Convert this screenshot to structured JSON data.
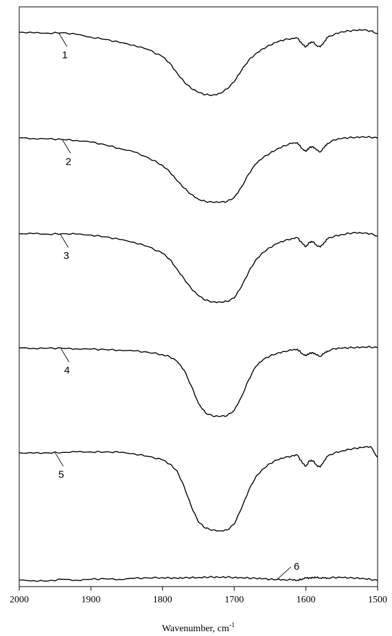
{
  "chart_data": {
    "type": "line",
    "title": "",
    "xlabel": "Wavenumber, cm",
    "xlabel_sup": "-1",
    "ylabel": "",
    "xlim": [
      2000,
      1500
    ],
    "x_ticks": [
      2000,
      1900,
      1800,
      1700,
      1600,
      1500
    ],
    "x_tick_labels": [
      "2000",
      "1900",
      "1800",
      "1700",
      "1600",
      "1500"
    ],
    "y_axis_labels_shown": false,
    "grid": false,
    "x_axis_reversed": true,
    "line_color": "#000000",
    "series": [
      {
        "label": "1",
        "label_x": 1945,
        "x": [
          2000,
          1980,
          1960,
          1940,
          1920,
          1900,
          1880,
          1860,
          1840,
          1820,
          1800,
          1790,
          1780,
          1770,
          1760,
          1750,
          1740,
          1730,
          1720,
          1710,
          1700,
          1690,
          1680,
          1670,
          1660,
          1650,
          1640,
          1630,
          1620,
          1612,
          1605,
          1600,
          1595,
          1590,
          1585,
          1580,
          1575,
          1570,
          1560,
          1550,
          1540,
          1530,
          1520,
          1510,
          1500
        ],
        "y": [
          -0.3,
          -0.45,
          -0.5,
          -0.4,
          -0.8,
          -1.4,
          -1.9,
          -2.6,
          -3.2,
          -4.2,
          -5.8,
          -7.2,
          -9.4,
          -11.4,
          -12.9,
          -13.8,
          -14.3,
          -14.4,
          -14.0,
          -13.0,
          -11.4,
          -8.9,
          -6.6,
          -5.1,
          -4.0,
          -3.2,
          -2.5,
          -2.0,
          -1.7,
          -1.6,
          -3.0,
          -3.6,
          -2.7,
          -2.5,
          -3.3,
          -3.6,
          -2.6,
          -1.5,
          -0.7,
          -0.2,
          0.0,
          0.1,
          0.2,
          0.0,
          -0.6
        ]
      },
      {
        "label": "2",
        "label_x": 1940,
        "x": [
          2000,
          1980,
          1960,
          1940,
          1920,
          1900,
          1880,
          1860,
          1840,
          1820,
          1800,
          1790,
          1780,
          1770,
          1760,
          1750,
          1740,
          1730,
          1720,
          1710,
          1700,
          1690,
          1680,
          1670,
          1660,
          1650,
          1640,
          1630,
          1620,
          1612,
          1605,
          1600,
          1595,
          1590,
          1585,
          1580,
          1575,
          1570,
          1560,
          1550,
          1540,
          1530,
          1520,
          1510,
          1500
        ],
        "y": [
          -0.1,
          -0.3,
          -0.4,
          -0.5,
          -0.7,
          -1.1,
          -1.7,
          -2.5,
          -3.3,
          -4.6,
          -6.3,
          -7.8,
          -9.7,
          -11.4,
          -12.8,
          -13.9,
          -14.4,
          -14.6,
          -14.6,
          -14.4,
          -13.5,
          -11.2,
          -8.3,
          -6.0,
          -4.6,
          -3.6,
          -2.6,
          -1.9,
          -1.4,
          -1.2,
          -2.6,
          -3.2,
          -2.3,
          -2.1,
          -2.9,
          -3.3,
          -2.4,
          -1.4,
          -0.6,
          -0.3,
          -0.1,
          0.0,
          0.1,
          0.0,
          -0.2
        ]
      },
      {
        "label": "3",
        "label_x": 1943,
        "x": [
          2000,
          1980,
          1960,
          1940,
          1920,
          1900,
          1880,
          1860,
          1840,
          1820,
          1800,
          1790,
          1780,
          1770,
          1760,
          1750,
          1740,
          1730,
          1720,
          1710,
          1700,
          1690,
          1680,
          1670,
          1660,
          1650,
          1640,
          1630,
          1620,
          1612,
          1605,
          1600,
          1595,
          1590,
          1585,
          1580,
          1575,
          1570,
          1560,
          1550,
          1540,
          1530,
          1520,
          1510,
          1500
        ],
        "y": [
          -0.1,
          -0.1,
          -0.2,
          -0.1,
          -0.2,
          -0.4,
          -0.8,
          -1.4,
          -2.0,
          -3.0,
          -4.5,
          -5.8,
          -8.0,
          -10.2,
          -12.4,
          -14.0,
          -15.0,
          -15.4,
          -15.4,
          -15.3,
          -14.5,
          -12.0,
          -8.7,
          -6.0,
          -4.3,
          -3.2,
          -2.3,
          -1.7,
          -1.2,
          -1.0,
          -2.3,
          -3.0,
          -2.0,
          -1.9,
          -2.7,
          -3.1,
          -2.2,
          -1.3,
          -0.6,
          -0.3,
          0.0,
          0.1,
          0.0,
          -0.1,
          -0.6
        ]
      },
      {
        "label": "4",
        "label_x": 1942,
        "x": [
          2000,
          1980,
          1960,
          1940,
          1920,
          1900,
          1880,
          1860,
          1840,
          1820,
          1800,
          1790,
          1780,
          1770,
          1760,
          1750,
          1740,
          1730,
          1720,
          1710,
          1700,
          1690,
          1680,
          1670,
          1660,
          1650,
          1640,
          1630,
          1620,
          1612,
          1605,
          1600,
          1595,
          1590,
          1585,
          1580,
          1575,
          1570,
          1560,
          1550,
          1540,
          1530,
          1520,
          1510,
          1500
        ],
        "y": [
          0.0,
          -0.1,
          -0.1,
          -0.1,
          -0.2,
          -0.3,
          -0.4,
          -0.5,
          -0.7,
          -1.0,
          -1.5,
          -2.0,
          -3.0,
          -5.0,
          -8.5,
          -12.4,
          -14.6,
          -15.3,
          -15.4,
          -15.2,
          -14.0,
          -11.0,
          -7.2,
          -4.2,
          -2.7,
          -1.8,
          -1.2,
          -0.8,
          -0.5,
          -0.3,
          -1.3,
          -1.8,
          -1.2,
          -1.1,
          -1.6,
          -1.9,
          -1.3,
          -0.7,
          -0.2,
          -0.1,
          0.0,
          0.1,
          0.2,
          0.2,
          0.0
        ]
      },
      {
        "label": "5",
        "label_x": 1950,
        "x": [
          2000,
          1980,
          1960,
          1940,
          1920,
          1900,
          1880,
          1860,
          1840,
          1820,
          1800,
          1790,
          1780,
          1770,
          1760,
          1750,
          1740,
          1730,
          1720,
          1710,
          1700,
          1690,
          1680,
          1670,
          1660,
          1650,
          1640,
          1630,
          1620,
          1612,
          1605,
          1600,
          1595,
          1590,
          1585,
          1580,
          1575,
          1570,
          1560,
          1550,
          1540,
          1530,
          1520,
          1510,
          1500
        ],
        "y": [
          0.0,
          -0.1,
          0.0,
          0.1,
          0.2,
          0.2,
          0.2,
          0.1,
          -0.2,
          -0.8,
          -1.6,
          -2.5,
          -4.0,
          -7.5,
          -12.0,
          -15.5,
          -16.9,
          -17.3,
          -17.5,
          -17.3,
          -16.0,
          -12.5,
          -8.5,
          -5.4,
          -3.6,
          -2.4,
          -1.6,
          -1.1,
          -0.7,
          -0.5,
          -2.3,
          -3.0,
          -1.8,
          -1.8,
          -2.8,
          -3.2,
          -1.9,
          -0.8,
          0.0,
          0.4,
          0.8,
          1.0,
          1.2,
          1.4,
          -1.0
        ]
      },
      {
        "label": "6",
        "label_x": 1640,
        "x": [
          2000,
          1980,
          1960,
          1940,
          1920,
          1900,
          1880,
          1860,
          1840,
          1820,
          1800,
          1790,
          1780,
          1770,
          1760,
          1750,
          1740,
          1730,
          1720,
          1710,
          1700,
          1690,
          1680,
          1670,
          1660,
          1650,
          1640,
          1630,
          1620,
          1612,
          1605,
          1600,
          1595,
          1590,
          1585,
          1580,
          1575,
          1570,
          1560,
          1550,
          1540,
          1530,
          1520,
          1510,
          1500
        ],
        "y": [
          -0.1,
          -0.2,
          -0.3,
          0.1,
          -0.1,
          0.1,
          0.2,
          0.1,
          0.3,
          0.4,
          0.5,
          0.4,
          0.3,
          0.4,
          0.5,
          0.5,
          0.6,
          0.6,
          0.5,
          0.6,
          0.5,
          0.5,
          0.4,
          0.3,
          0.2,
          0.1,
          0.1,
          0.0,
          0.0,
          -0.1,
          0.2,
          0.4,
          0.4,
          0.5,
          0.5,
          0.4,
          0.4,
          0.4,
          0.5,
          0.5,
          0.4,
          0.4,
          0.3,
          0.1,
          -0.2
        ]
      }
    ]
  }
}
